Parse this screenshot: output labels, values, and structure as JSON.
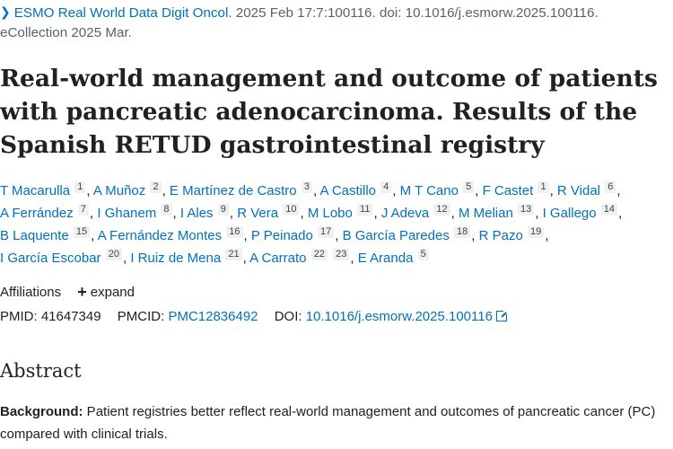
{
  "citation": {
    "journal": "ESMO Real World Data Digit Oncol.",
    "details_line1": " 2025 Feb 17:7:100116. doi: 10.1016/j.esmorw.2025.100116.",
    "details_line2": "eCollection 2025 Mar."
  },
  "article": {
    "title_line1": "Real-world management and outcome of patients",
    "title_line2": "with pancreatic adenocarcinoma. Results of the",
    "title_line3": "Spanish RETUD gastrointestinal registry"
  },
  "authors": [
    {
      "name": "T Macarulla",
      "aff": "1"
    },
    {
      "name": "A Muñoz",
      "aff": "2"
    },
    {
      "name": "E Martínez de Castro",
      "aff": "3"
    },
    {
      "name": "A Castillo",
      "aff": "4"
    },
    {
      "name": "M T Cano",
      "aff": "5"
    },
    {
      "name": "F Castet",
      "aff": "1"
    },
    {
      "name": "R Vidal",
      "aff": "6"
    },
    {
      "name": "A Ferrández",
      "aff": "7"
    },
    {
      "name": "I Ghanem",
      "aff": "8"
    },
    {
      "name": "I Ales",
      "aff": "9"
    },
    {
      "name": "R Vera",
      "aff": "10"
    },
    {
      "name": "M Lobo",
      "aff": "11"
    },
    {
      "name": "J Adeva",
      "aff": "12"
    },
    {
      "name": "M Melian",
      "aff": "13"
    },
    {
      "name": "I Gallego",
      "aff": "14"
    },
    {
      "name": "B Laquente",
      "aff": "15"
    },
    {
      "name": "A Fernández Montes",
      "aff": "16"
    },
    {
      "name": "P Peinado",
      "aff": "17"
    },
    {
      "name": "B García Paredes",
      "aff": "18"
    },
    {
      "name": "R Pazo",
      "aff": "19"
    },
    {
      "name": "I García Escobar",
      "aff": "20"
    },
    {
      "name": "I Ruiz de Mena",
      "aff": "21"
    },
    {
      "name": "A Carrato",
      "aff": "22",
      "aff2": "23"
    },
    {
      "name": "E Aranda",
      "aff": "5"
    }
  ],
  "affiliations": {
    "label": "Affiliations",
    "expand_label": "expand"
  },
  "ids": {
    "pmid_label": "PMID:",
    "pmid": "41647349",
    "pmcid_label": "PMCID:",
    "pmcid": "PMC12836492",
    "doi_label": "DOI:",
    "doi": "10.1016/j.esmorw.2025.100116"
  },
  "abstract": {
    "heading": "Abstract",
    "background_label": "Background:",
    "background_text": " Patient registries better reflect real-world management and outcomes of pancreatic cancer (PC) compared with clinical trials."
  },
  "colors": {
    "link": "#0071bc",
    "text": "#212121",
    "muted": "#5b616b"
  },
  "icons": {
    "journal_chevron": "chevron-right-icon",
    "expand": "plus-icon",
    "doi_link": "external-link-icon"
  }
}
